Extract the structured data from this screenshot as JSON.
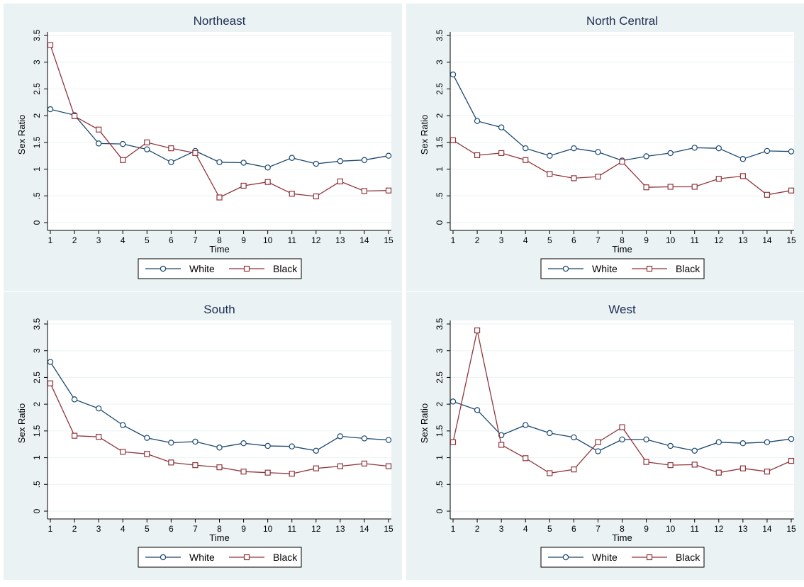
{
  "chart_data": [
    {
      "type": "line",
      "title": "Northeast",
      "xlabel": "Time",
      "ylabel": "Sex Ratio",
      "xlim": [
        1,
        15
      ],
      "ylim": [
        0,
        3.5
      ],
      "x_ticks": [
        "1",
        "2",
        "3",
        "4",
        "5",
        "6",
        "7",
        "8",
        "9",
        "10",
        "11",
        "12",
        "13",
        "14",
        "15"
      ],
      "y_ticks": [
        {
          "value": 0,
          "label": "0"
        },
        {
          "value": 0.5,
          "label": ".5"
        },
        {
          "value": 1,
          "label": "1"
        },
        {
          "value": 1.5,
          "label": "1.5"
        },
        {
          "value": 2,
          "label": "2"
        },
        {
          "value": 2.5,
          "label": "2.5"
        },
        {
          "value": 3,
          "label": "3"
        },
        {
          "value": 3.5,
          "label": "3.5"
        }
      ],
      "grid": true,
      "legend_position": "bottom",
      "x": [
        1,
        2,
        3,
        4,
        5,
        6,
        7,
        8,
        9,
        10,
        11,
        12,
        13,
        14,
        15
      ],
      "series": [
        {
          "name": "White",
          "marker": "circle",
          "color": "#1a476f",
          "values": [
            2.12,
            2.01,
            1.48,
            1.47,
            1.37,
            1.13,
            1.34,
            1.13,
            1.12,
            1.03,
            1.21,
            1.1,
            1.15,
            1.17,
            1.25
          ]
        },
        {
          "name": "Black",
          "marker": "square",
          "color": "#90353b",
          "values": [
            3.32,
            1.99,
            1.74,
            1.17,
            1.5,
            1.39,
            1.3,
            0.47,
            0.69,
            0.76,
            0.54,
            0.49,
            0.77,
            0.59,
            0.6
          ]
        }
      ]
    },
    {
      "type": "line",
      "title": "North Central",
      "xlabel": "Time",
      "ylabel": "Sex Ratio",
      "xlim": [
        1,
        15
      ],
      "ylim": [
        0,
        3.5
      ],
      "x_ticks": [
        "1",
        "2",
        "3",
        "4",
        "5",
        "6",
        "7",
        "8",
        "9",
        "10",
        "11",
        "12",
        "13",
        "14",
        "15"
      ],
      "y_ticks": [
        {
          "value": 0,
          "label": "0"
        },
        {
          "value": 0.5,
          "label": ".5"
        },
        {
          "value": 1,
          "label": "1"
        },
        {
          "value": 1.5,
          "label": "1.5"
        },
        {
          "value": 2,
          "label": "2"
        },
        {
          "value": 2.5,
          "label": "2.5"
        },
        {
          "value": 3,
          "label": "3"
        },
        {
          "value": 3.5,
          "label": "3.5"
        }
      ],
      "grid": true,
      "legend_position": "bottom",
      "x": [
        1,
        2,
        3,
        4,
        5,
        6,
        7,
        8,
        9,
        10,
        11,
        12,
        13,
        14,
        15
      ],
      "series": [
        {
          "name": "White",
          "marker": "circle",
          "color": "#1a476f",
          "values": [
            2.77,
            1.9,
            1.78,
            1.39,
            1.25,
            1.39,
            1.32,
            1.16,
            1.24,
            1.3,
            1.4,
            1.39,
            1.19,
            1.34,
            1.33
          ]
        },
        {
          "name": "Black",
          "marker": "square",
          "color": "#90353b",
          "values": [
            1.54,
            1.26,
            1.3,
            1.17,
            0.91,
            0.83,
            0.86,
            1.14,
            0.66,
            0.67,
            0.67,
            0.82,
            0.87,
            0.52,
            0.6
          ]
        }
      ]
    },
    {
      "type": "line",
      "title": "South",
      "xlabel": "Time",
      "ylabel": "Sex Ratio",
      "xlim": [
        1,
        15
      ],
      "ylim": [
        0,
        3.5
      ],
      "x_ticks": [
        "1",
        "2",
        "3",
        "4",
        "5",
        "6",
        "7",
        "8",
        "9",
        "10",
        "11",
        "12",
        "13",
        "14",
        "15"
      ],
      "y_ticks": [
        {
          "value": 0,
          "label": "0"
        },
        {
          "value": 0.5,
          "label": ".5"
        },
        {
          "value": 1,
          "label": "1"
        },
        {
          "value": 1.5,
          "label": "1.5"
        },
        {
          "value": 2,
          "label": "2"
        },
        {
          "value": 2.5,
          "label": "2.5"
        },
        {
          "value": 3,
          "label": "3"
        },
        {
          "value": 3.5,
          "label": "3.5"
        }
      ],
      "grid": true,
      "legend_position": "bottom",
      "x": [
        1,
        2,
        3,
        4,
        5,
        6,
        7,
        8,
        9,
        10,
        11,
        12,
        13,
        14,
        15
      ],
      "series": [
        {
          "name": "White",
          "marker": "circle",
          "color": "#1a476f",
          "values": [
            2.79,
            2.09,
            1.92,
            1.61,
            1.37,
            1.28,
            1.3,
            1.19,
            1.27,
            1.22,
            1.21,
            1.13,
            1.4,
            1.36,
            1.33
          ]
        },
        {
          "name": "Black",
          "marker": "square",
          "color": "#90353b",
          "values": [
            2.39,
            1.41,
            1.39,
            1.11,
            1.07,
            0.91,
            0.86,
            0.82,
            0.74,
            0.72,
            0.7,
            0.8,
            0.84,
            0.89,
            0.84
          ]
        }
      ]
    },
    {
      "type": "line",
      "title": "West",
      "xlabel": "Time",
      "ylabel": "Sex Ratio",
      "xlim": [
        1,
        15
      ],
      "ylim": [
        0,
        3.5
      ],
      "x_ticks": [
        "1",
        "2",
        "3",
        "4",
        "5",
        "6",
        "7",
        "8",
        "9",
        "10",
        "11",
        "12",
        "13",
        "14",
        "15"
      ],
      "y_ticks": [
        {
          "value": 0,
          "label": "0"
        },
        {
          "value": 0.5,
          "label": ".5"
        },
        {
          "value": 1,
          "label": "1"
        },
        {
          "value": 1.5,
          "label": "1.5"
        },
        {
          "value": 2,
          "label": "2"
        },
        {
          "value": 2.5,
          "label": "2.5"
        },
        {
          "value": 3,
          "label": "3"
        },
        {
          "value": 3.5,
          "label": "3.5"
        }
      ],
      "grid": true,
      "legend_position": "bottom",
      "x": [
        1,
        2,
        3,
        4,
        5,
        6,
        7,
        8,
        9,
        10,
        11,
        12,
        13,
        14,
        15
      ],
      "series": [
        {
          "name": "White",
          "marker": "circle",
          "color": "#1a476f",
          "values": [
            2.05,
            1.89,
            1.42,
            1.61,
            1.46,
            1.38,
            1.12,
            1.34,
            1.34,
            1.22,
            1.13,
            1.29,
            1.27,
            1.29,
            1.35
          ]
        },
        {
          "name": "Black",
          "marker": "square",
          "color": "#90353b",
          "values": [
            1.29,
            3.38,
            1.24,
            0.99,
            0.71,
            0.78,
            1.29,
            1.57,
            0.92,
            0.86,
            0.87,
            0.72,
            0.8,
            0.74,
            0.94
          ]
        }
      ]
    }
  ],
  "colors": {
    "panel_background": "#eaf2f3",
    "plot_background": "#ffffff",
    "title_text": "#1e2d53",
    "axis": "#000000",
    "grid": "#eaf2f3"
  }
}
